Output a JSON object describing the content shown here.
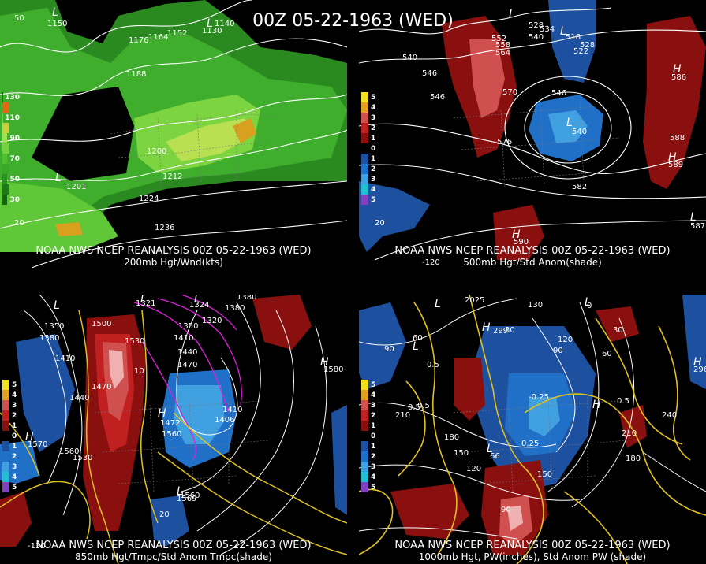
{
  "title": "00Z 05-22-1963 (WED)",
  "panels": [
    {
      "caption1": "NOAA NWS NCEP REANALYSIS 00Z 05-22-1963 (WED)",
      "caption2": "200mb Hgt/Wnd(kts)",
      "legend": [
        {
          "label": "130",
          "color": "#c81414"
        },
        {
          "label": "",
          "color": "#e06a14"
        },
        {
          "label": "110",
          "color": "#d9a020"
        },
        {
          "label": "",
          "color": "#c8d040"
        },
        {
          "label": "90",
          "color": "#a0e050"
        },
        {
          "label": "",
          "color": "#78d040"
        },
        {
          "label": "70",
          "color": "#50c030"
        },
        {
          "label": "",
          "color": "#38a828"
        },
        {
          "label": "50",
          "color": "#2a9020"
        },
        {
          "label": "",
          "color": "#1e7a18"
        },
        {
          "label": "30",
          "color": "#146414"
        }
      ],
      "contour_labels": [
        "1150",
        "1176",
        "1164",
        "1152",
        "1140",
        "1130",
        "1188",
        "1200",
        "1212",
        "1224",
        "1236",
        "1201",
        "50",
        "20"
      ],
      "markers": [
        "L",
        "L",
        "L"
      ]
    },
    {
      "caption1": "NOAA NWS NCEP REANALYSIS 00Z 05-22-1963 (WED)",
      "caption2": "500mb Hgt/Std Anom(shade)",
      "legend": [
        {
          "label": "5",
          "color": "#f0e020"
        },
        {
          "label": "4",
          "color": "#e0a020"
        },
        {
          "label": "3",
          "color": "#d05050"
        },
        {
          "label": "2",
          "color": "#c02020"
        },
        {
          "label": "1",
          "color": "#8a1010"
        },
        {
          "label": "0",
          "color": "#000000"
        },
        {
          "label": "1",
          "color": "#1e50a0"
        },
        {
          "label": "2",
          "color": "#2070c8"
        },
        {
          "label": "3",
          "color": "#40a0e0"
        },
        {
          "label": "4",
          "color": "#20c0d0"
        },
        {
          "label": "5",
          "color": "#8040c0"
        }
      ],
      "contour_labels": [
        "528",
        "534",
        "540",
        "552",
        "558",
        "564",
        "518",
        "522",
        "528",
        "540",
        "546",
        "546",
        "570",
        "546",
        "540",
        "576",
        "582",
        "586",
        "588",
        "589",
        "590",
        "587",
        "20",
        "-120"
      ],
      "markers": [
        "L",
        "L",
        "L",
        "H",
        "H",
        "H",
        "L"
      ]
    },
    {
      "caption1": "NOAA NWS NCEP REANALYSIS 00Z 05-22-1963 (WED)",
      "caption2": "850mb Hgt/Tmpc/Std Anom Tmpc(shade)",
      "legend": [
        {
          "label": "5",
          "color": "#f0e020"
        },
        {
          "label": "4",
          "color": "#e0a020"
        },
        {
          "label": "3",
          "color": "#d05050"
        },
        {
          "label": "2",
          "color": "#c02020"
        },
        {
          "label": "1",
          "color": "#8a1010"
        },
        {
          "label": "0",
          "color": "#000000"
        },
        {
          "label": "1",
          "color": "#1e50a0"
        },
        {
          "label": "2",
          "color": "#2070c8"
        },
        {
          "label": "3",
          "color": "#40a0e0"
        },
        {
          "label": "4",
          "color": "#20c0d0"
        },
        {
          "label": "5",
          "color": "#8040c0"
        }
      ],
      "contour_labels": [
        "1380",
        "1350",
        "1380",
        "1410",
        "1440",
        "1470",
        "1500",
        "1530",
        "1321",
        "1324",
        "1380",
        "1350",
        "1320",
        "1410",
        "1440",
        "1470",
        "1410",
        "1406",
        "1560",
        "1472",
        "1560",
        "1530",
        "1570",
        "1580",
        "1569",
        "1560",
        "10",
        "20",
        "-130"
      ],
      "markers": [
        "L",
        "L",
        "L",
        "H",
        "H",
        "H",
        "L"
      ]
    },
    {
      "caption1": "NOAA NWS NCEP REANALYSIS 00Z 05-22-1963 (WED)",
      "caption2": "1000mb Hgt, PW(inches), Std Anom PW (shade)",
      "legend": [
        {
          "label": "5",
          "color": "#f0e020"
        },
        {
          "label": "4",
          "color": "#e0a020"
        },
        {
          "label": "3",
          "color": "#d05050"
        },
        {
          "label": "2",
          "color": "#c02020"
        },
        {
          "label": "1",
          "color": "#8a1010"
        },
        {
          "label": "0",
          "color": "#000000"
        },
        {
          "label": "1",
          "color": "#1e50a0"
        },
        {
          "label": "2",
          "color": "#2070c8"
        },
        {
          "label": "3",
          "color": "#40a0e0"
        },
        {
          "label": "4",
          "color": "#20c0d0"
        },
        {
          "label": "5",
          "color": "#8040c0"
        }
      ],
      "contour_labels": [
        "30",
        "60",
        "90",
        "2025",
        "130",
        "0",
        "120",
        "90",
        "30",
        "60",
        "0.5",
        "0.5",
        "0.5",
        "210",
        "180",
        "150",
        "120",
        "0.25",
        "-0.25",
        "0.5",
        "240",
        "210",
        "180",
        "150",
        "66",
        "90",
        "299",
        "296"
      ],
      "markers": [
        "L",
        "L",
        "H",
        "L",
        "H",
        "L",
        "H"
      ]
    }
  ]
}
